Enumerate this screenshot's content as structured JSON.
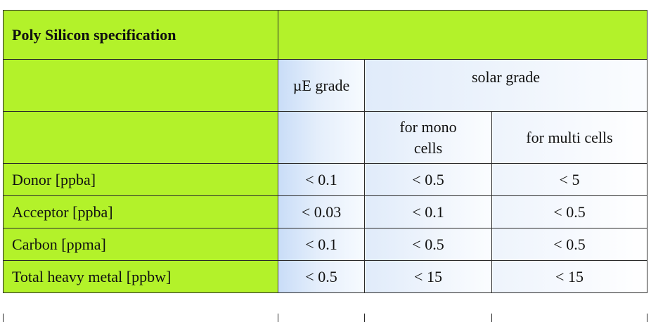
{
  "table": {
    "title": "Poly Silicon specification",
    "header_row1": {
      "ue_grade": "µE grade",
      "solar_grade": "solar grade"
    },
    "header_row2": {
      "mono": "for mono cells",
      "multi": "for multi cells"
    },
    "rows": [
      {
        "label": "Donor [ppba]",
        "ue": "< 0.1",
        "mono": "< 0.5",
        "multi": "< 5"
      },
      {
        "label": "Acceptor [ppba]",
        "ue": "< 0.03",
        "mono": "< 0.1",
        "multi": "< 0.5"
      },
      {
        "label": "Carbon [ppma]",
        "ue": "< 0.1",
        "mono": "< 0.5",
        "multi": "< 0.5"
      },
      {
        "label": "Total heavy metal [ppbw]",
        "ue": "< 0.5",
        "mono": "< 15",
        "multi": "< 15"
      }
    ],
    "colors": {
      "label_fill": "#b3f22a",
      "value_fill": "#c9ddf8"
    }
  }
}
